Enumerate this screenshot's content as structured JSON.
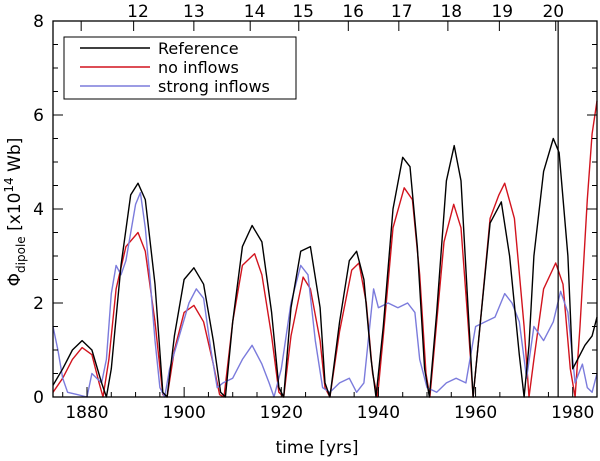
{
  "chart_data": {
    "type": "line",
    "xlabel": "time [yrs]",
    "ylabel": "Φ dipole [x10^14 Wb]",
    "ylabel_parts": {
      "symbol": "Φ",
      "subscript": "dipole",
      "bracket_open": " [x10",
      "exponent": "14",
      "unit": " Wb]"
    },
    "xlim": [
      1873,
      1985
    ],
    "ylim": [
      0,
      8
    ],
    "x_ticks": [
      1880,
      1900,
      1920,
      1940,
      1960,
      1980
    ],
    "y_ticks": [
      0,
      2,
      4,
      6,
      8
    ],
    "x_tick_labels": [
      "1880",
      "1900",
      "1920",
      "1940",
      "1960",
      "1980"
    ],
    "y_tick_labels": [
      "0",
      "2",
      "4",
      "6",
      "8"
    ],
    "grid": false,
    "legend_position": "top-left",
    "vertical_marker_x": 1977,
    "top_axis": {
      "cycle_labels": [
        "12",
        "13",
        "14",
        "15",
        "16",
        "17",
        "18",
        "19",
        "20"
      ],
      "cycle_label_x": [
        1890.5,
        1902,
        1914.5,
        1924.5,
        1934.8,
        1944.8,
        1955,
        1965.5,
        1976
      ],
      "cycle_boundaries_x": [
        1878.8,
        1889.6,
        1902,
        1913.6,
        1923.6,
        1933.8,
        1944.2,
        1954.3,
        1964.9,
        1976.5
      ]
    },
    "series": [
      {
        "name": "Reference",
        "color": "#000000",
        "x": [
          1873,
          1875,
          1877,
          1879,
          1881,
          1883,
          1884,
          1885,
          1887,
          1889,
          1890.5,
          1892,
          1894,
          1895.6,
          1896.5,
          1898,
          1900,
          1902,
          1904,
          1906,
          1907.5,
          1908.5,
          1910,
          1912,
          1914,
          1916,
          1918,
          1919.5,
          1920.5,
          1922,
          1924,
          1926,
          1928,
          1929,
          1930,
          1932,
          1934,
          1935.5,
          1937,
          1938.5,
          1939.5,
          1941,
          1943,
          1945,
          1946.5,
          1948,
          1949.5,
          1950.5,
          1952,
          1954,
          1955.6,
          1957,
          1958.5,
          1959.5,
          1961,
          1963,
          1965.3,
          1967,
          1969,
          1970,
          1971,
          1972,
          1974,
          1976,
          1977.2,
          1979,
          1980,
          1981,
          1982.5,
          1984,
          1985
        ],
        "values": [
          0.25,
          0.6,
          1.0,
          1.2,
          1.0,
          0.3,
          0.0,
          0.6,
          2.8,
          4.3,
          4.55,
          4.2,
          2.4,
          0.1,
          0.0,
          1.3,
          2.5,
          2.75,
          2.4,
          1.2,
          0.1,
          0.0,
          1.6,
          3.2,
          3.65,
          3.3,
          1.8,
          0.2,
          0.0,
          1.9,
          3.1,
          3.2,
          1.9,
          0.3,
          0.0,
          1.6,
          2.9,
          3.1,
          2.5,
          0.8,
          0.0,
          1.5,
          4.0,
          5.1,
          4.9,
          3.2,
          0.6,
          0.0,
          1.8,
          4.6,
          5.35,
          4.6,
          1.8,
          0.0,
          1.6,
          3.7,
          4.15,
          3.0,
          0.9,
          0.0,
          1.1,
          3.0,
          4.8,
          5.5,
          5.2,
          3.0,
          0.6,
          0.8,
          1.1,
          1.3,
          1.7
        ]
      },
      {
        "name": "no inflows",
        "color": "#d2141e",
        "x": [
          1873,
          1875,
          1877,
          1879,
          1881,
          1882.5,
          1883.3,
          1884.5,
          1886,
          1888,
          1890.5,
          1892,
          1894,
          1895.6,
          1896.5,
          1898,
          1900,
          1902,
          1904,
          1906,
          1907.3,
          1908.2,
          1910,
          1912,
          1914.5,
          1916,
          1918,
          1919.5,
          1920.5,
          1922,
          1924.5,
          1926,
          1928,
          1929,
          1930,
          1932,
          1934.5,
          1936,
          1937.5,
          1938.8,
          1939.8,
          1941,
          1943,
          1945.3,
          1947,
          1948.5,
          1949.8,
          1950.6,
          1952,
          1953.5,
          1955.5,
          1957,
          1958.5,
          1959.5,
          1961,
          1963,
          1964.8,
          1966,
          1968,
          1970,
          1971,
          1972,
          1974,
          1976.5,
          1978,
          1979.5,
          1980.5,
          1981.5,
          1983,
          1984,
          1985
        ],
        "values": [
          0.1,
          0.4,
          0.8,
          1.05,
          0.9,
          0.3,
          0.0,
          0.8,
          2.3,
          3.2,
          3.5,
          3.1,
          1.6,
          0.05,
          0.0,
          1.0,
          1.8,
          1.95,
          1.6,
          0.7,
          0.05,
          0.0,
          1.6,
          2.8,
          3.05,
          2.6,
          1.3,
          0.1,
          0.0,
          1.3,
          2.55,
          2.3,
          1.2,
          0.2,
          0.0,
          1.4,
          2.7,
          2.85,
          2.0,
          0.5,
          0.0,
          1.3,
          3.6,
          4.45,
          4.2,
          2.6,
          0.5,
          0.0,
          1.6,
          3.3,
          4.1,
          3.6,
          1.5,
          0.0,
          1.6,
          3.8,
          4.3,
          4.55,
          3.8,
          1.5,
          0.0,
          0.8,
          2.3,
          2.85,
          2.4,
          0.6,
          0.0,
          1.5,
          4.2,
          5.6,
          6.3
        ]
      },
      {
        "name": "strong inflows",
        "color": "#7b7bdc",
        "x": [
          1873,
          1874,
          1875,
          1876,
          1878,
          1880,
          1881,
          1882,
          1883,
          1884,
          1885,
          1886,
          1887,
          1888,
          1890,
          1891,
          1892,
          1893,
          1894,
          1895,
          1896,
          1897,
          1899,
          1901,
          1902.5,
          1904,
          1905.5,
          1906.8,
          1908,
          1910,
          1912,
          1914,
          1916,
          1917.5,
          1918.5,
          1920,
          1922,
          1924,
          1925.5,
          1927,
          1928.5,
          1930,
          1932,
          1934,
          1935.5,
          1937,
          1938.2,
          1939,
          1940,
          1942,
          1944,
          1946,
          1947.5,
          1948.5,
          1950,
          1952,
          1954,
          1956,
          1958,
          1960,
          1962,
          1964,
          1966,
          1967.5,
          1969,
          1970.5,
          1972,
          1974,
          1976,
          1977.5,
          1979,
          1980.5,
          1982,
          1983,
          1984,
          1985
        ],
        "values": [
          1.5,
          1.0,
          0.4,
          0.1,
          0.05,
          0.0,
          0.5,
          0.4,
          0.3,
          0.8,
          2.2,
          2.8,
          2.6,
          2.9,
          4.1,
          4.35,
          3.6,
          2.5,
          1.2,
          0.2,
          0.0,
          0.6,
          1.3,
          2.0,
          2.3,
          2.1,
          1.0,
          0.2,
          0.3,
          0.4,
          0.8,
          1.1,
          0.7,
          0.3,
          0.0,
          0.6,
          2.0,
          2.8,
          2.6,
          1.2,
          0.2,
          0.1,
          0.3,
          0.4,
          0.1,
          0.3,
          1.5,
          2.3,
          1.9,
          2.0,
          1.9,
          2.0,
          1.8,
          0.8,
          0.2,
          0.1,
          0.3,
          0.4,
          0.3,
          1.5,
          1.6,
          1.7,
          2.2,
          2.0,
          1.6,
          0.4,
          1.5,
          1.2,
          1.6,
          2.25,
          1.8,
          0.3,
          0.7,
          0.2,
          0.1,
          0.5
        ]
      }
    ]
  }
}
